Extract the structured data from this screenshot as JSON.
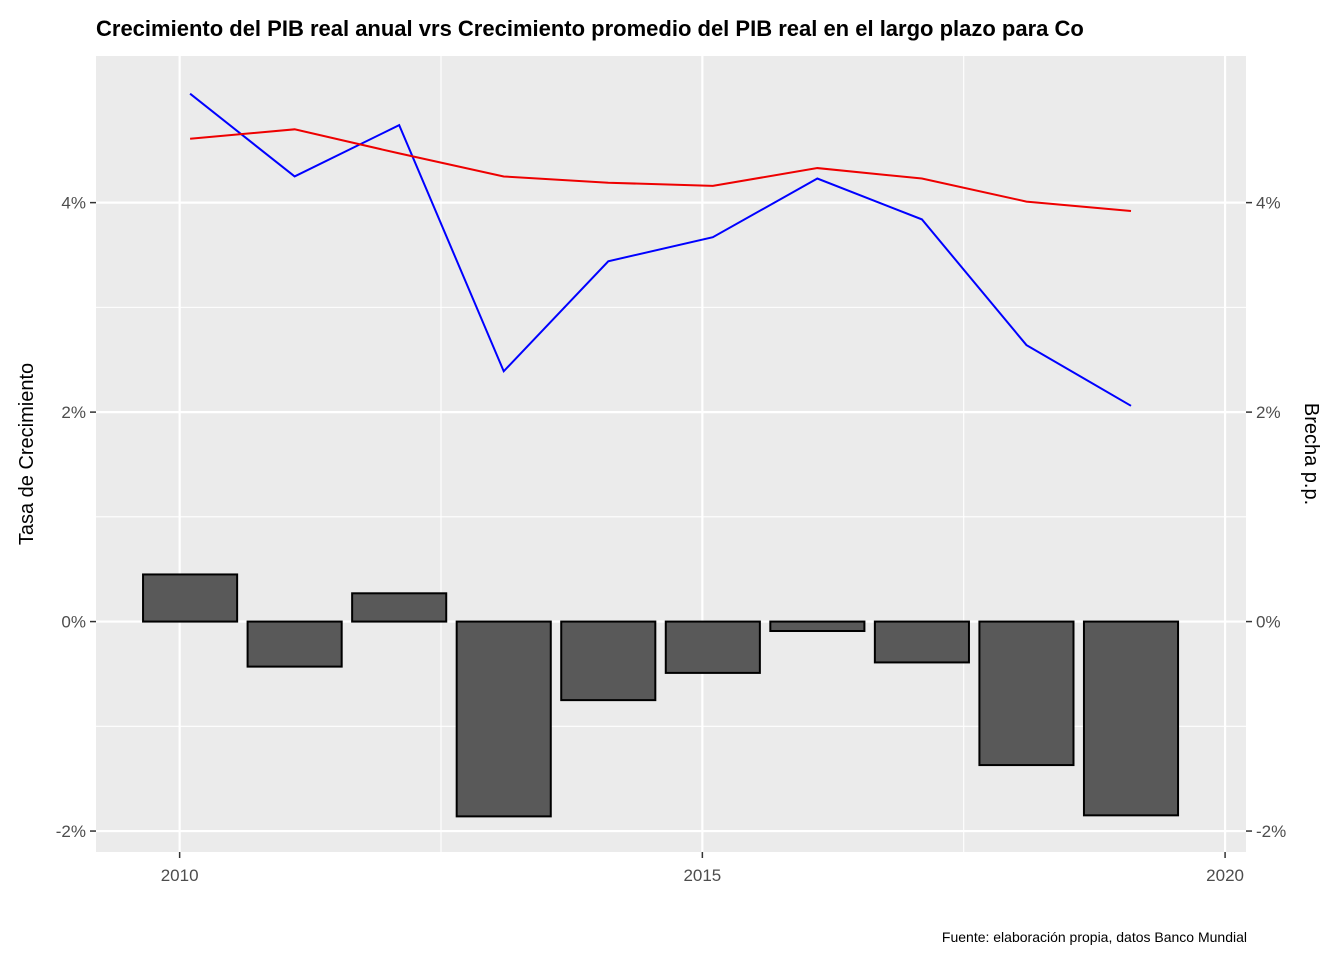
{
  "chart_data": {
    "type": "bar+line",
    "title": "Crecimiento del PIB real anual vrs Crecimiento promedio del PIB real en el largo plazo para Co",
    "ylabel": "Tasa de Crecimiento",
    "y2label": "Brecha p.p.",
    "caption": "Fuente: elaboración propia, datos Banco Mundial",
    "xlim": [
      2009.2,
      2020.2
    ],
    "ylim": [
      -2.2,
      5.4
    ],
    "x_ticks": [
      2010,
      2015,
      2020
    ],
    "x_tick_labels": [
      "2010",
      "2015",
      "2020"
    ],
    "y_ticks": [
      -2,
      0,
      2,
      4
    ],
    "y_tick_labels": [
      "-2%",
      "0%",
      "2%",
      "4%"
    ],
    "grid": true,
    "bars": {
      "name": "Brecha",
      "fill": "#595959",
      "stroke": "#000000",
      "x": [
        2010.1,
        2011.1,
        2012.1,
        2013.1,
        2014.1,
        2015.1,
        2016.1,
        2017.1,
        2018.1,
        2019.1
      ],
      "values": [
        0.45,
        -0.43,
        0.27,
        -1.86,
        -0.75,
        -0.49,
        -0.09,
        -0.39,
        -1.37,
        -1.85
      ]
    },
    "series": [
      {
        "color": "#0000ff",
        "x": [
          2010.1,
          2011.1,
          2012.1,
          2013.1,
          2014.1,
          2015.1,
          2016.1,
          2017.1,
          2018.1,
          2019.1
        ],
        "values": [
          5.04,
          4.25,
          4.74,
          2.39,
          3.44,
          3.67,
          4.23,
          3.84,
          2.64,
          2.06
        ]
      },
      {
        "color": "#ee0000",
        "x": [
          2010.1,
          2011.1,
          2012.1,
          2013.1,
          2014.1,
          2015.1,
          2016.1,
          2017.1,
          2018.1,
          2019.1
        ],
        "values": [
          4.61,
          4.7,
          4.47,
          4.25,
          4.19,
          4.16,
          4.33,
          4.23,
          4.01,
          3.92
        ]
      }
    ]
  }
}
